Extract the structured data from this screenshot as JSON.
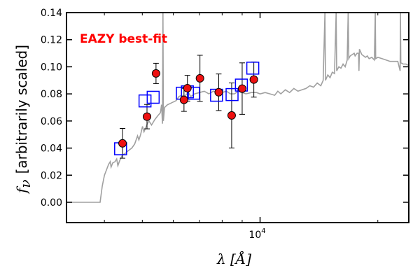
{
  "chart_data": {
    "type": "scatter",
    "annotation": "EAZY best-fit",
    "xlabel": "λ [Å]",
    "ylabel_prefix": "f",
    "ylabel_sub": "ν",
    "ylabel": "[arbitrarily scaled]",
    "x_scale": "log",
    "xlim": [
      3200,
      24000
    ],
    "ylim": [
      -0.015,
      0.14
    ],
    "x_tick_labels": [
      {
        "value": 10000,
        "base": "10",
        "exp": "4"
      }
    ],
    "y_ticks": [
      0.0,
      0.02,
      0.04,
      0.06,
      0.08,
      0.1,
      0.12,
      0.14
    ],
    "y_tick_labels": [
      "0.00",
      "0.02",
      "0.04",
      "0.06",
      "0.08",
      "0.10",
      "0.12",
      "0.14"
    ],
    "grid": false,
    "colors": {
      "template": "#a0a0a0",
      "model": "#0000ff",
      "observed": "#ee1111",
      "annotation": "#ff0000"
    },
    "series": [
      {
        "kind": "template_spectrum",
        "points": [
          [
            3200,
            0.0
          ],
          [
            3900,
            0.0
          ],
          [
            3950,
            0.012
          ],
          [
            4000,
            0.02
          ],
          [
            4050,
            0.024
          ],
          [
            4100,
            0.028
          ],
          [
            4140,
            0.03
          ],
          [
            4160,
            0.026
          ],
          [
            4200,
            0.029
          ],
          [
            4260,
            0.03
          ],
          [
            4300,
            0.032
          ],
          [
            4330,
            0.027
          ],
          [
            4380,
            0.031
          ],
          [
            4450,
            0.035
          ],
          [
            4520,
            0.036
          ],
          [
            4600,
            0.038
          ],
          [
            4700,
            0.04
          ],
          [
            4780,
            0.043
          ],
          [
            4861,
            0.049
          ],
          [
            4900,
            0.046
          ],
          [
            4950,
            0.05
          ],
          [
            5007,
            0.056
          ],
          [
            5050,
            0.052
          ],
          [
            5100,
            0.055
          ],
          [
            5150,
            0.058
          ],
          [
            5200,
            0.06
          ],
          [
            5280,
            0.057
          ],
          [
            5380,
            0.061
          ],
          [
            5480,
            0.064
          ],
          [
            5560,
            0.066
          ],
          [
            5600,
            0.072
          ],
          [
            5630,
            0.058
          ],
          [
            5645,
            0.14
          ],
          [
            5660,
            0.06
          ],
          [
            5700,
            0.07
          ],
          [
            5800,
            0.072
          ],
          [
            5900,
            0.073
          ],
          [
            6000,
            0.074
          ],
          [
            6100,
            0.075
          ],
          [
            6200,
            0.078
          ],
          [
            6300,
            0.079
          ],
          [
            6400,
            0.078
          ],
          [
            6500,
            0.08
          ],
          [
            6563,
            0.081
          ],
          [
            6650,
            0.078
          ],
          [
            6800,
            0.08
          ],
          [
            7000,
            0.081
          ],
          [
            7200,
            0.082
          ],
          [
            7400,
            0.08
          ],
          [
            7600,
            0.082
          ],
          [
            7800,
            0.081
          ],
          [
            8000,
            0.081
          ],
          [
            8200,
            0.082
          ],
          [
            8400,
            0.08
          ],
          [
            8600,
            0.08
          ],
          [
            8800,
            0.082
          ],
          [
            9000,
            0.081
          ],
          [
            9200,
            0.08
          ],
          [
            9500,
            0.081
          ],
          [
            9800,
            0.081
          ],
          [
            10000,
            0.08
          ],
          [
            10300,
            0.081
          ],
          [
            10600,
            0.08
          ],
          [
            10900,
            0.079
          ],
          [
            11100,
            0.082
          ],
          [
            11300,
            0.08
          ],
          [
            11600,
            0.083
          ],
          [
            11900,
            0.081
          ],
          [
            12200,
            0.084
          ],
          [
            12500,
            0.082
          ],
          [
            12800,
            0.083
          ],
          [
            13100,
            0.084
          ],
          [
            13400,
            0.086
          ],
          [
            13700,
            0.085
          ],
          [
            14000,
            0.088
          ],
          [
            14300,
            0.086
          ],
          [
            14500,
            0.09
          ],
          [
            14650,
            0.14
          ],
          [
            14700,
            0.09
          ],
          [
            14900,
            0.094
          ],
          [
            15100,
            0.092
          ],
          [
            15300,
            0.096
          ],
          [
            15500,
            0.095
          ],
          [
            15650,
            0.14
          ],
          [
            15700,
            0.097
          ],
          [
            15900,
            0.1
          ],
          [
            16100,
            0.099
          ],
          [
            16300,
            0.102
          ],
          [
            16500,
            0.1
          ],
          [
            16700,
            0.105
          ],
          [
            16800,
            0.14
          ],
          [
            16850,
            0.106
          ],
          [
            17000,
            0.108
          ],
          [
            17200,
            0.109
          ],
          [
            17400,
            0.11
          ],
          [
            17500,
            0.108
          ],
          [
            17700,
            0.11
          ],
          [
            17850,
            0.11
          ],
          [
            17900,
            0.097
          ],
          [
            17950,
            0.113
          ],
          [
            18200,
            0.109
          ],
          [
            18400,
            0.108
          ],
          [
            18600,
            0.107
          ],
          [
            18800,
            0.108
          ],
          [
            19000,
            0.106
          ],
          [
            19300,
            0.107
          ],
          [
            19600,
            0.105
          ],
          [
            19700,
            0.14
          ],
          [
            19750,
            0.106
          ],
          [
            20000,
            0.107
          ],
          [
            20500,
            0.106
          ],
          [
            21000,
            0.105
          ],
          [
            21500,
            0.104
          ],
          [
            22000,
            0.104
          ],
          [
            22500,
            0.104
          ],
          [
            22800,
            0.097
          ],
          [
            22850,
            0.14
          ],
          [
            22900,
            0.103
          ],
          [
            23200,
            0.102
          ],
          [
            23600,
            0.102
          ],
          [
            24000,
            0.101
          ]
        ]
      },
      {
        "kind": "model_photometry",
        "points": [
          [
            4400,
            0.0395
          ],
          [
            5080,
            0.0748
          ],
          [
            5330,
            0.0775
          ],
          [
            6330,
            0.0805
          ],
          [
            6520,
            0.0815
          ],
          [
            6760,
            0.0805
          ],
          [
            7740,
            0.079
          ],
          [
            8480,
            0.0795
          ],
          [
            8960,
            0.0865
          ],
          [
            9580,
            0.099
          ]
        ]
      },
      {
        "kind": "observed_photometry",
        "points": [
          {
            "x": 4450,
            "y": 0.0435,
            "err": 0.011
          },
          {
            "x": 5140,
            "y": 0.0632,
            "err": 0.009
          },
          {
            "x": 5420,
            "y": 0.0951,
            "err": 0.0075
          },
          {
            "x": 6390,
            "y": 0.0756,
            "err": 0.0085
          },
          {
            "x": 6520,
            "y": 0.0842,
            "err": 0.0095
          },
          {
            "x": 7020,
            "y": 0.0915,
            "err": 0.017
          },
          {
            "x": 7840,
            "y": 0.0812,
            "err": 0.0135
          },
          {
            "x": 8460,
            "y": 0.0641,
            "err": 0.024
          },
          {
            "x": 9000,
            "y": 0.0839,
            "err": 0.019
          },
          {
            "x": 9640,
            "y": 0.0906,
            "err": 0.013
          }
        ]
      }
    ]
  }
}
